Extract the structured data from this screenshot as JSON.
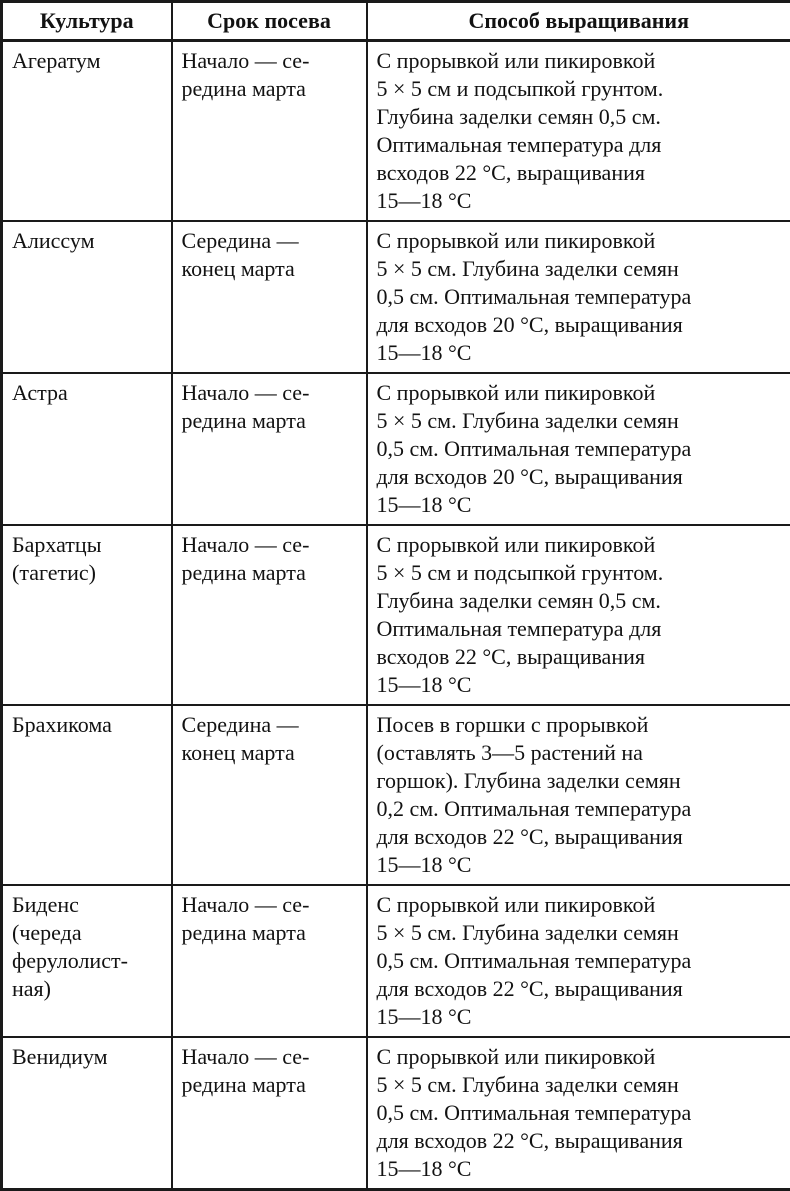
{
  "page": {
    "background_color": "#ffffff",
    "ink_color": "#1a1a1a"
  },
  "table": {
    "headers": [
      "Культура",
      "Срок посева",
      "Способ выращивания"
    ],
    "rows": [
      {
        "culture": "Агератум",
        "sowing": "Начало — се-\nредина марта",
        "method": "С прорывкой или пикировкой\n5 × 5 см и подсыпкой грунтом.\nГлубина заделки семян 0,5 см.\nОптимальная температура для\nвсходов 22 °С, выращивания\n15—18 °С"
      },
      {
        "culture": "Алиссум",
        "sowing": "Середина —\nконец марта",
        "method": "С прорывкой или пикировкой\n5 × 5 см. Глубина заделки семян\n0,5 см. Оптимальная температура\nдля всходов 20 °С, выращивания\n15—18 °С"
      },
      {
        "culture": "Астра",
        "sowing": "Начало — се-\nредина марта",
        "method": "С прорывкой или пикировкой\n5 × 5 см. Глубина заделки семян\n0,5 см. Оптимальная температура\nдля всходов 20 °С, выращивания\n15—18 °С"
      },
      {
        "culture": "Бархатцы\n(тагетис)",
        "sowing": "Начало — се-\nредина марта",
        "method": "С прорывкой или пикировкой\n5 × 5 см и подсыпкой грунтом.\nГлубина заделки семян 0,5 см.\nОптимальная температура для\nвсходов 22 °С, выращивания\n15—18 °С"
      },
      {
        "culture": "Брахикома",
        "sowing": "Середина —\nконец марта",
        "method": "Посев в горшки с прорывкой\n(оставлять 3—5 растений на\nгоршок). Глубина заделки семян\n0,2 см. Оптимальная температура\nдля всходов 22 °С, выращивания\n15—18 °С"
      },
      {
        "culture": "Биденс\n(череда\nферулолист-\nная)",
        "sowing": "Начало — се-\nредина марта",
        "method": "С прорывкой или пикировкой\n5 × 5 см. Глубина заделки семян\n0,5 см. Оптимальная температура\nдля всходов 22 °С, выращивания\n15—18 °С"
      },
      {
        "culture": "Венидиум",
        "sowing": "Начало — се-\nредина марта",
        "method": "С прорывкой или пикировкой\n5 × 5 см. Глубина заделки семян\n0,5 см. Оптимальная температура\nдля всходов 22 °С, выращивания\n15—18 °С"
      }
    ]
  }
}
